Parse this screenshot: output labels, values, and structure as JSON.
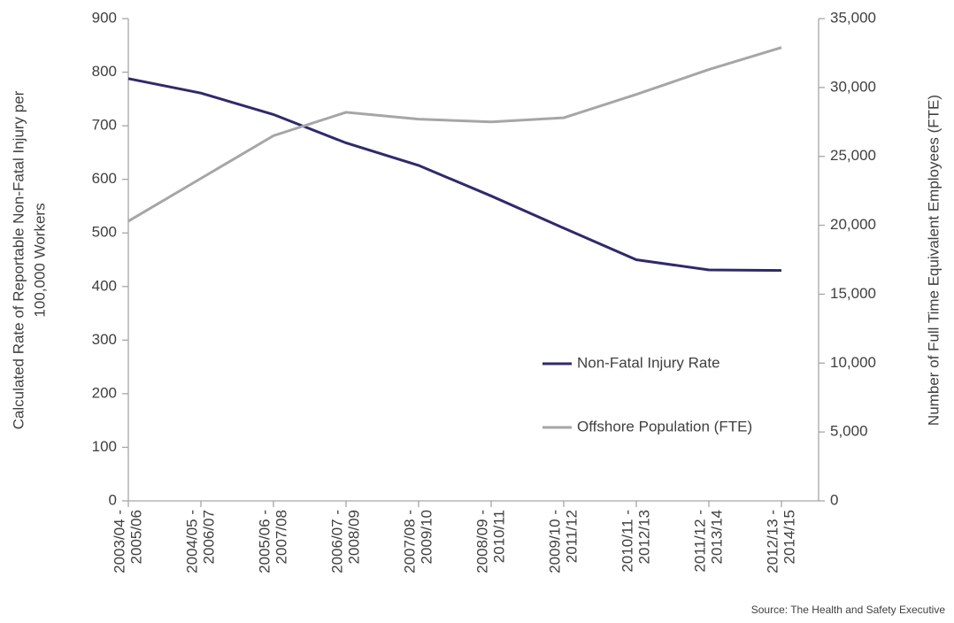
{
  "chart_data": {
    "type": "line",
    "categories": [
      [
        "2003/04 -",
        "2005/06"
      ],
      [
        "2004/05 -",
        "2006/07"
      ],
      [
        "2005/06 -",
        "2007/08"
      ],
      [
        "2006/07 -",
        "2008/09"
      ],
      [
        "2007/08 -",
        "2009/10"
      ],
      [
        "2008/09 -",
        "2010/11"
      ],
      [
        "2009/10 -",
        "2011/12"
      ],
      [
        "2010/11 -",
        "2012/13"
      ],
      [
        "2011/12 -",
        "2013/14"
      ],
      [
        "2012/13 -",
        "2014/15"
      ]
    ],
    "series": [
      {
        "name": "Non-Fatal Injury Rate",
        "color": "#2f2a6b",
        "values": [
          788,
          761,
          721,
          668,
          626,
          569,
          509,
          450,
          431,
          430
        ]
      },
      {
        "name": "Offshore Population (FTE)",
        "color": "#a6a6a6",
        "axis": "y2",
        "values": [
          20300,
          23400,
          26500,
          28200,
          27700,
          27500,
          27800,
          29500,
          31300,
          32900
        ]
      }
    ],
    "ylabel": [
      "Calculated Rate of Reportable Non-Fatal Injury per",
      "100,000 Workers"
    ],
    "y2label": "Number of Full Time Equivalent Employees (FTE)",
    "ylim": [
      0,
      900
    ],
    "yticks": [
      0,
      100,
      200,
      300,
      400,
      500,
      600,
      700,
      800,
      900
    ],
    "y2lim": [
      0,
      35000
    ],
    "y2ticks": [
      0,
      {
        "value": 5000,
        "label": "5,000"
      },
      {
        "value": 10000,
        "label": "10,000"
      },
      {
        "value": 15000,
        "label": "15,000"
      },
      {
        "value": 20000,
        "label": "20,000"
      },
      {
        "value": 25000,
        "label": "25,000"
      },
      {
        "value": 30000,
        "label": "30,000"
      },
      {
        "value": 35000,
        "label": "35,000"
      }
    ],
    "grid": false,
    "legend": "right",
    "source": "Source: The Health and Safety Executive"
  }
}
